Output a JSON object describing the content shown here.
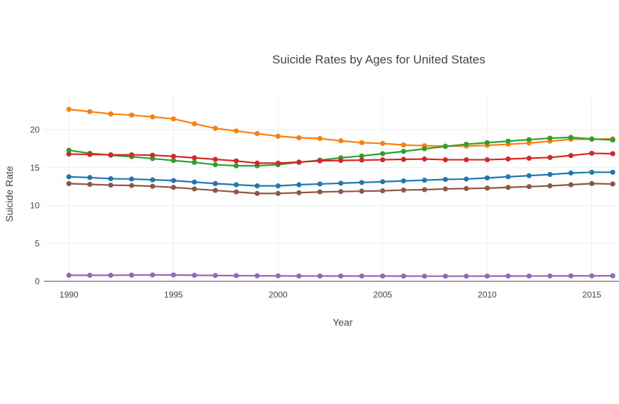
{
  "chart_data": {
    "type": "line",
    "title": "Suicide Rates by Ages for United States",
    "xlabel": "Year",
    "ylabel": "Suicide Rate",
    "xlim": [
      1988.8,
      2016.3
    ],
    "ylim": [
      0,
      24.2
    ],
    "xticks": [
      1990,
      1995,
      2000,
      2005,
      2010,
      2015
    ],
    "yticks": [
      0,
      5,
      10,
      15,
      20
    ],
    "grid": true,
    "legend": "none",
    "x": [
      1990,
      1991,
      1992,
      1993,
      1994,
      1995,
      1996,
      1997,
      1998,
      1999,
      2000,
      2001,
      2002,
      2003,
      2004,
      2005,
      2006,
      2007,
      2008,
      2009,
      2010,
      2011,
      2012,
      2013,
      2014,
      2015,
      2016
    ],
    "series": [
      {
        "color": "#1f77b4",
        "values": [
          13.8,
          13.7,
          13.55,
          13.5,
          13.4,
          13.3,
          13.1,
          12.9,
          12.75,
          12.6,
          12.6,
          12.75,
          12.85,
          12.95,
          13.05,
          13.15,
          13.25,
          13.35,
          13.45,
          13.5,
          13.65,
          13.8,
          13.95,
          14.1,
          14.3,
          14.4,
          14.4
        ]
      },
      {
        "color": "#ff7f0e",
        "values": [
          22.7,
          22.4,
          22.1,
          21.95,
          21.7,
          21.45,
          20.8,
          20.2,
          19.85,
          19.5,
          19.15,
          18.95,
          18.85,
          18.55,
          18.3,
          18.2,
          18.0,
          17.9,
          17.85,
          17.85,
          17.95,
          18.1,
          18.25,
          18.5,
          18.75,
          18.75,
          18.8
        ]
      },
      {
        "color": "#2ca02c",
        "values": [
          17.3,
          16.9,
          16.65,
          16.45,
          16.2,
          15.95,
          15.7,
          15.4,
          15.25,
          15.25,
          15.4,
          15.7,
          16.0,
          16.3,
          16.55,
          16.85,
          17.15,
          17.5,
          17.8,
          18.1,
          18.3,
          18.5,
          18.7,
          18.9,
          19.0,
          18.8,
          18.65
        ]
      },
      {
        "color": "#d62728",
        "values": [
          16.8,
          16.75,
          16.7,
          16.7,
          16.65,
          16.5,
          16.3,
          16.1,
          15.9,
          15.6,
          15.6,
          15.75,
          15.9,
          15.95,
          16.0,
          16.05,
          16.1,
          16.15,
          16.05,
          16.05,
          16.05,
          16.15,
          16.25,
          16.35,
          16.6,
          16.9,
          16.85
        ]
      },
      {
        "color": "#9467bd",
        "values": [
          0.8,
          0.8,
          0.8,
          0.82,
          0.84,
          0.84,
          0.8,
          0.77,
          0.75,
          0.73,
          0.72,
          0.7,
          0.7,
          0.7,
          0.7,
          0.7,
          0.69,
          0.68,
          0.68,
          0.68,
          0.69,
          0.7,
          0.7,
          0.71,
          0.72,
          0.72,
          0.73
        ]
      },
      {
        "color": "#8c564b",
        "values": [
          12.9,
          12.8,
          12.7,
          12.65,
          12.55,
          12.4,
          12.2,
          12.0,
          11.8,
          11.6,
          11.6,
          11.7,
          11.8,
          11.85,
          11.9,
          11.95,
          12.05,
          12.1,
          12.2,
          12.25,
          12.3,
          12.4,
          12.5,
          12.6,
          12.75,
          12.9,
          12.85
        ]
      }
    ]
  }
}
